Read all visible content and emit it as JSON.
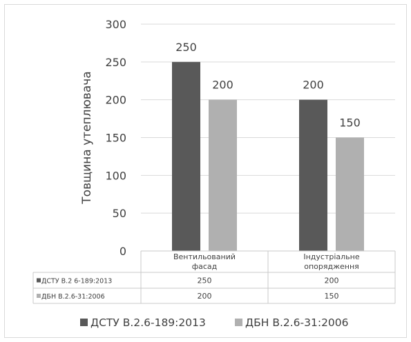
{
  "chart_data": {
    "type": "bar",
    "categories": [
      [
        "Вентильований",
        "фасад"
      ],
      [
        "Індустріальне",
        "опорядження"
      ]
    ],
    "series": [
      {
        "name": "ДСТУ В.2.6-189:2013",
        "values": [
          250,
          200
        ],
        "color": "#595959"
      },
      {
        "name": "ДБН В.2.6-31:2006",
        "values": [
          200,
          150
        ],
        "color": "#b0b0b0"
      }
    ],
    "ylabel": "Товщина утеплювача",
    "ylim": [
      0,
      300
    ],
    "yticks": [
      0,
      50,
      100,
      150,
      200,
      250,
      300
    ],
    "data_table": {
      "rows": [
        {
          "label": "ДСТУ В.2 6-189:2013",
          "values": [
            "250",
            "200"
          ]
        },
        {
          "label": "ДБН В.2.6-31:2006",
          "values": [
            "200",
            "150"
          ]
        }
      ]
    },
    "legend": {
      "position": "bottom",
      "items": [
        "ДСТУ В.2.6-189:2013",
        "ДБН В.2.6-31:2006"
      ]
    },
    "grid": true
  }
}
